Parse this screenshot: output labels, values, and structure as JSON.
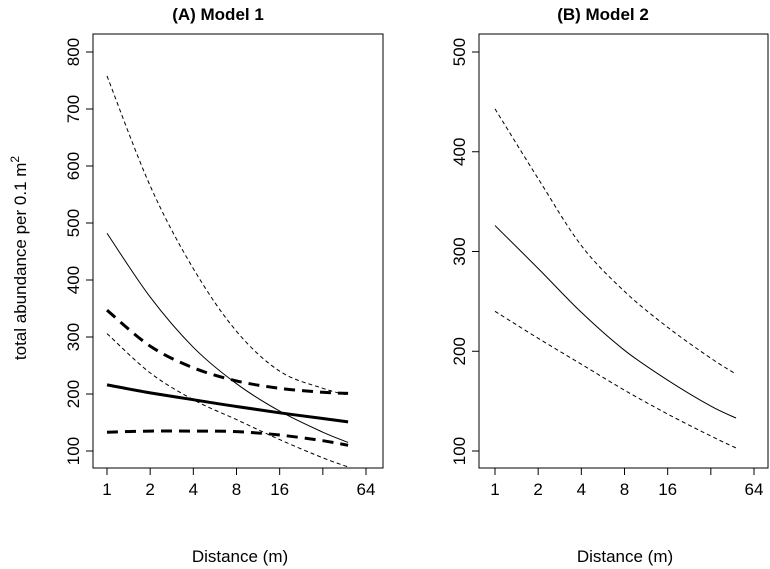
{
  "chart_data": [
    {
      "type": "line",
      "title": "(A) Model 1",
      "xlabel": "Distance (m)",
      "ylabel_main": "total abundance per 0.1 m",
      "ylabel_sup": "2",
      "x_scale": "log2",
      "xlim": [
        1,
        64
      ],
      "ylim": [
        100,
        800
      ],
      "x_ticks": [
        1,
        2,
        4,
        8,
        16,
        32,
        64
      ],
      "x_tick_labels": [
        "1",
        "2",
        "4",
        "8",
        "16",
        "",
        "64"
      ],
      "y_ticks": [
        100,
        200,
        300,
        400,
        500,
        600,
        700,
        800
      ],
      "y_tick_labels": [
        "100",
        "200",
        "300",
        "400",
        "500",
        "600",
        "700",
        "800"
      ],
      "x": [
        1,
        2,
        4,
        8,
        16,
        32,
        48
      ],
      "series": [
        {
          "style": "thin-solid",
          "values": [
            482,
            370,
            282,
            218,
            170,
            133,
            115
          ]
        },
        {
          "style": "thin-dashed",
          "values": [
            758,
            565,
            420,
            310,
            240,
            210,
            198
          ]
        },
        {
          "style": "thin-dashed",
          "values": [
            306,
            237,
            190,
            155,
            120,
            88,
            72
          ]
        },
        {
          "style": "thick-solid",
          "values": [
            216,
            202,
            190,
            178,
            167,
            157,
            151
          ]
        },
        {
          "style": "thick-dashed",
          "values": [
            347,
            284,
            246,
            223,
            210,
            203,
            201
          ]
        },
        {
          "style": "thick-dashed",
          "values": [
            133,
            135,
            135,
            134,
            128,
            118,
            110
          ]
        }
      ]
    },
    {
      "type": "line",
      "title": "(B) Model 2",
      "xlabel": "Distance (m)",
      "x_scale": "log2",
      "xlim": [
        1,
        64
      ],
      "ylim": [
        100,
        500
      ],
      "x_ticks": [
        1,
        2,
        4,
        8,
        16,
        32,
        64
      ],
      "x_tick_labels": [
        "1",
        "2",
        "4",
        "8",
        "16",
        "",
        "64"
      ],
      "y_ticks": [
        100,
        200,
        300,
        400,
        500
      ],
      "y_tick_labels": [
        "100",
        "200",
        "300",
        "400",
        "500"
      ],
      "x": [
        1,
        2,
        4,
        8,
        16,
        32,
        48
      ],
      "series": [
        {
          "style": "thin-solid",
          "values": [
            326,
            283,
            239,
            201,
            171,
            145,
            133
          ]
        },
        {
          "style": "thin-dashed",
          "values": [
            443,
            373,
            306,
            260,
            224,
            193,
            177
          ]
        },
        {
          "style": "thin-dashed",
          "values": [
            240,
            213,
            187,
            161,
            137,
            115,
            103
          ]
        }
      ]
    }
  ]
}
